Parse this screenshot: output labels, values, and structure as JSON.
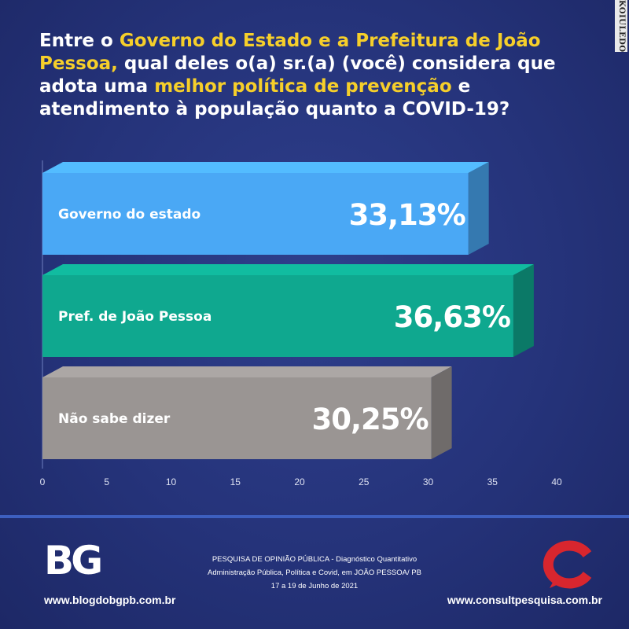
{
  "watermark": "KOIULEDO",
  "question": {
    "parts": [
      {
        "text": "Entre o ",
        "hl": false
      },
      {
        "text": "Governo do Estado e a Prefeitura de João Pessoa,",
        "hl": true
      },
      {
        "text": " qual deles o(a) sr.(a) (você) considera que adota uma ",
        "hl": false
      },
      {
        "text": "melhor política de prevenção",
        "hl": true
      },
      {
        "text": " e atendimento à população quanto a COVID-19?",
        "hl": false
      }
    ]
  },
  "chart_data": {
    "type": "bar",
    "orientation": "horizontal",
    "categories": [
      "Governo do estado",
      "Pref. de João Pessoa",
      "Não sabe dizer"
    ],
    "values": [
      33.13,
      36.63,
      30.25
    ],
    "value_labels": [
      "33,13%",
      "36,63%",
      "30,25%"
    ],
    "colors": [
      "#4aa8f5",
      "#0fa88f",
      "#9a9593"
    ],
    "xlim": [
      0,
      40
    ],
    "xticks": [
      "0",
      "5",
      "10",
      "15",
      "20",
      "25",
      "30",
      "35",
      "40"
    ],
    "title": "",
    "xlabel": "",
    "ylabel": ""
  },
  "footer": {
    "logo_left": "BG",
    "site_left": "www.blogdobgpb.com.br",
    "source_lines": [
      "PESQUISA DE OPINIÃO PÚBLICA - Diagnóstico Quantitativo",
      "Administração Pública, Política e Covid, em JOÃO PESSOA/ PB",
      "17 a 19 de Junho de 2021"
    ],
    "site_right": "www.consultpesquisa.com.br",
    "accent_red": "#d8262e"
  }
}
